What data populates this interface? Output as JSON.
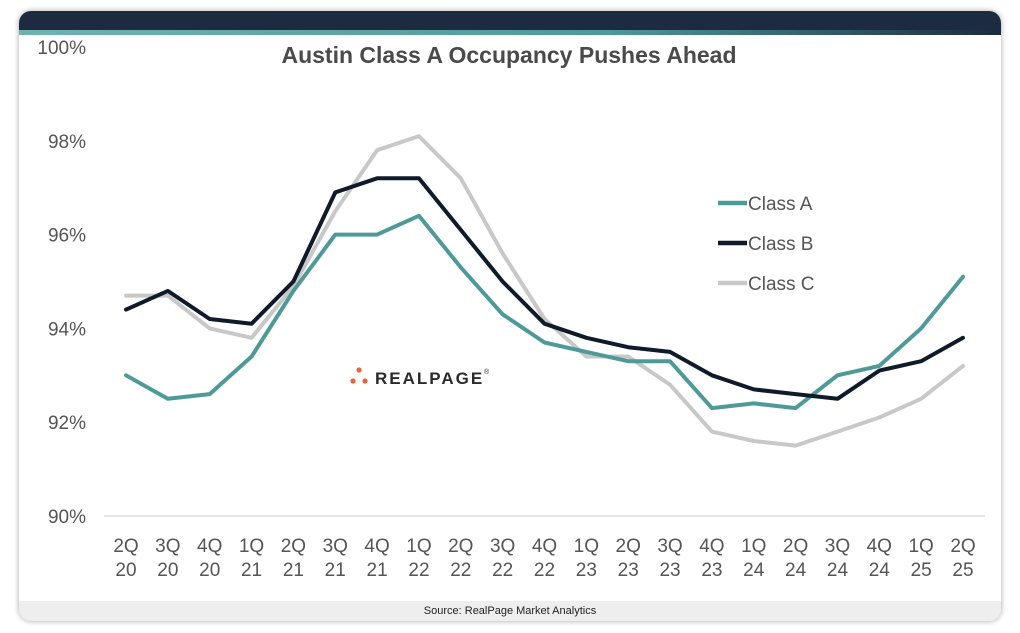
{
  "footer": {
    "source": "Source: RealPage Market Analytics"
  },
  "logo": {
    "text": "REALPAGE",
    "mark": "®"
  },
  "colors": {
    "header": "#1c2b3f",
    "accent": "#4e9a98"
  },
  "chart_data": {
    "type": "line",
    "title": "Austin Class A Occupancy Pushes Ahead",
    "xlabel": "",
    "ylabel": "",
    "ylim": [
      90,
      100
    ],
    "yticks": [
      90,
      92,
      94,
      96,
      98,
      100
    ],
    "ytick_labels": [
      "90%",
      "92%",
      "94%",
      "96%",
      "98%",
      "100%"
    ],
    "categories": [
      [
        "2Q",
        "20"
      ],
      [
        "3Q",
        "20"
      ],
      [
        "4Q",
        "20"
      ],
      [
        "1Q",
        "21"
      ],
      [
        "2Q",
        "21"
      ],
      [
        "3Q",
        "21"
      ],
      [
        "4Q",
        "21"
      ],
      [
        "1Q",
        "22"
      ],
      [
        "2Q",
        "22"
      ],
      [
        "3Q",
        "22"
      ],
      [
        "4Q",
        "22"
      ],
      [
        "1Q",
        "23"
      ],
      [
        "2Q",
        "23"
      ],
      [
        "3Q",
        "23"
      ],
      [
        "4Q",
        "23"
      ],
      [
        "1Q",
        "24"
      ],
      [
        "2Q",
        "24"
      ],
      [
        "3Q",
        "24"
      ],
      [
        "4Q",
        "24"
      ],
      [
        "1Q",
        "25"
      ],
      [
        "2Q",
        "25"
      ]
    ],
    "legend_position": "right",
    "series": [
      {
        "name": "Class A",
        "color": "#4e9a98",
        "values": [
          93.0,
          92.5,
          92.6,
          93.4,
          94.8,
          96.0,
          96.0,
          96.4,
          95.3,
          94.3,
          93.7,
          93.5,
          93.3,
          93.3,
          92.3,
          92.4,
          92.3,
          93.0,
          93.2,
          94.0,
          95.1
        ]
      },
      {
        "name": "Class B",
        "color": "#0f1a2a",
        "values": [
          94.4,
          94.8,
          94.2,
          94.1,
          95.0,
          96.9,
          97.2,
          97.2,
          96.1,
          95.0,
          94.1,
          93.8,
          93.6,
          93.5,
          93.0,
          92.7,
          92.6,
          92.5,
          93.1,
          93.3,
          93.8
        ]
      },
      {
        "name": "Class C",
        "color": "#c8c8c8",
        "values": [
          94.7,
          94.7,
          94.0,
          93.8,
          94.9,
          96.5,
          97.8,
          98.1,
          97.2,
          95.6,
          94.2,
          93.4,
          93.4,
          92.8,
          91.8,
          91.6,
          91.5,
          91.8,
          92.1,
          92.5,
          93.2
        ]
      }
    ]
  }
}
